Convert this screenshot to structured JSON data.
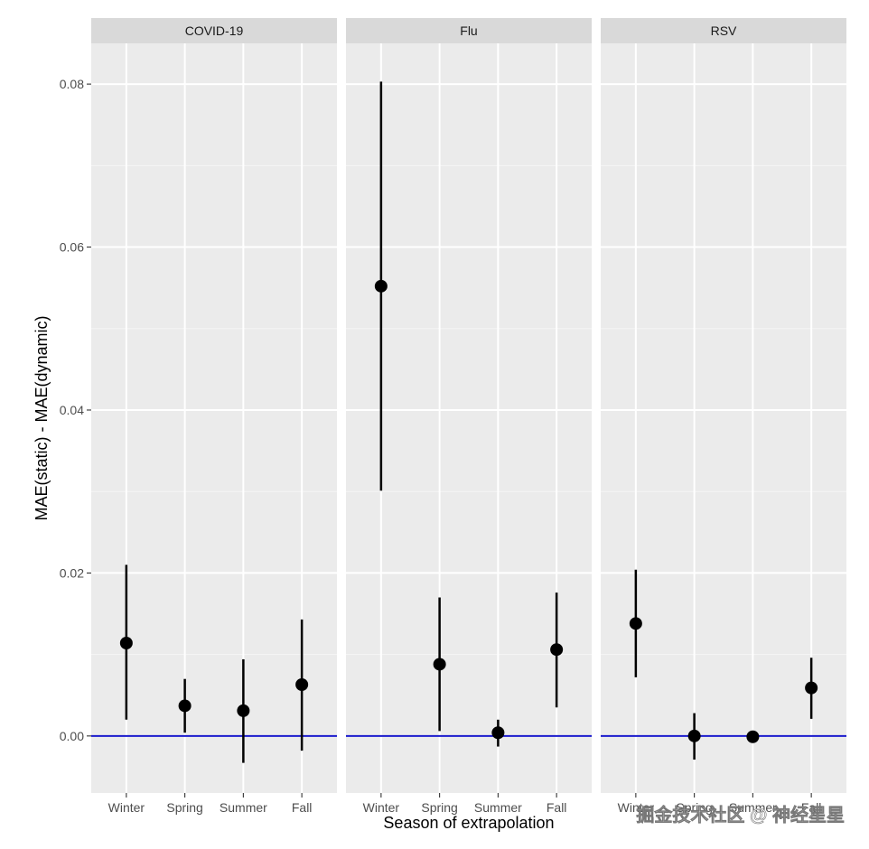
{
  "chart_data": {
    "type": "pointrange",
    "xlabel": "Season of extrapolation",
    "ylabel": "MAE(static) - MAE(dynamic)",
    "ylim": [
      -0.007,
      0.085
    ],
    "yticks": [
      0.0,
      0.02,
      0.04,
      0.06,
      0.08
    ],
    "ytick_labels": [
      "0.00",
      "0.02",
      "0.04",
      "0.06",
      "0.08"
    ],
    "categories": [
      "Winter",
      "Spring",
      "Summer",
      "Fall"
    ],
    "reference_line": {
      "y": 0,
      "color": "#1a1acc"
    },
    "grid": true,
    "panels": [
      {
        "name": "COVID-19",
        "points": [
          {
            "x": "Winter",
            "y": 0.0114,
            "ymin": 0.002,
            "ymax": 0.021
          },
          {
            "x": "Spring",
            "y": 0.0037,
            "ymin": 0.0004,
            "ymax": 0.007
          },
          {
            "x": "Summer",
            "y": 0.0031,
            "ymin": -0.0033,
            "ymax": 0.0094
          },
          {
            "x": "Fall",
            "y": 0.0063,
            "ymin": -0.0018,
            "ymax": 0.0143
          }
        ]
      },
      {
        "name": "Flu",
        "points": [
          {
            "x": "Winter",
            "y": 0.0552,
            "ymin": 0.0301,
            "ymax": 0.0803
          },
          {
            "x": "Spring",
            "y": 0.0088,
            "ymin": 0.0006,
            "ymax": 0.017
          },
          {
            "x": "Summer",
            "y": 0.0004,
            "ymin": -0.0013,
            "ymax": 0.002
          },
          {
            "x": "Fall",
            "y": 0.0106,
            "ymin": 0.0035,
            "ymax": 0.0176
          }
        ]
      },
      {
        "name": "RSV",
        "points": [
          {
            "x": "Winter",
            "y": 0.0138,
            "ymin": 0.0072,
            "ymax": 0.0204
          },
          {
            "x": "Spring",
            "y": 0.0,
            "ymin": -0.0029,
            "ymax": 0.0028
          },
          {
            "x": "Summer",
            "y": -0.0001,
            "ymin": -0.0002,
            "ymax": 0.0
          },
          {
            "x": "Fall",
            "y": 0.0059,
            "ymin": 0.0021,
            "ymax": 0.0096
          }
        ]
      }
    ]
  },
  "watermark": "掘金技术社区 @ 神经星星",
  "colors": {
    "panel_bg": "#ebebeb",
    "strip_bg": "#d9d9d9",
    "grid_major": "#ffffff",
    "point": "#000000",
    "reference": "#1a1acc"
  }
}
